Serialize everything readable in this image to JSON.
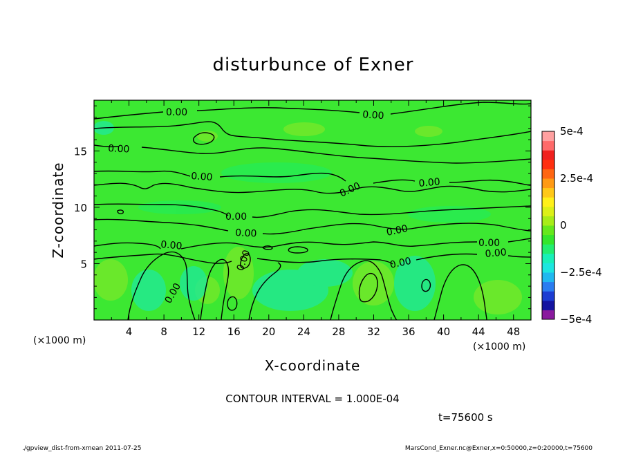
{
  "chart_data": {
    "type": "heatmap",
    "title": "disturbunce of Exner",
    "xlabel": "X-coordinate",
    "ylabel": "Z-coordinate",
    "x_unit": "(×1000 m)",
    "y_unit": "(×1000 m)",
    "xlim": [
      0,
      50
    ],
    "ylim": [
      0,
      19.5
    ],
    "x_ticks": [
      "4",
      "8",
      "12",
      "16",
      "20",
      "24",
      "28",
      "32",
      "36",
      "40",
      "44",
      "48"
    ],
    "y_ticks": [
      "5",
      "10",
      "15"
    ],
    "colorbar": {
      "ticks": [
        "5e-4",
        "2.5e-4",
        "0",
        "−2.5e-4",
        "−5e-4"
      ],
      "range": [
        -0.0005,
        0.0005
      ],
      "colors": [
        "#8a1a9e",
        "#1414a0",
        "#1c3cd2",
        "#2a7cf0",
        "#20b8f0",
        "#1ce6e0",
        "#18f0b8",
        "#22ee70",
        "#34e62c",
        "#66e81c",
        "#a8ec18",
        "#dcf018",
        "#fff01a",
        "#ffc818",
        "#ff9a14",
        "#ff6612",
        "#ff3010",
        "#f0201e",
        "#ff6a6a",
        "#ffa0a0"
      ]
    },
    "contour_labels": [
      "0.00",
      "0.00",
      "0.00",
      "0.00",
      "0.00",
      "0.00",
      "0.00",
      "0.00",
      "0.00",
      "0.00",
      "0.00",
      "0.00",
      "0.00",
      "0.00",
      "0.00"
    ],
    "contour_interval_text": "CONTOUR INTERVAL = 1.000E-04",
    "time_text": "t=75600 s"
  },
  "footer": {
    "left": "./gpview_dist-from-xmean  2011-07-25",
    "right": "MarsCond_Exner.nc@Exner,x=0:50000,z=0:20000,t=75600"
  }
}
